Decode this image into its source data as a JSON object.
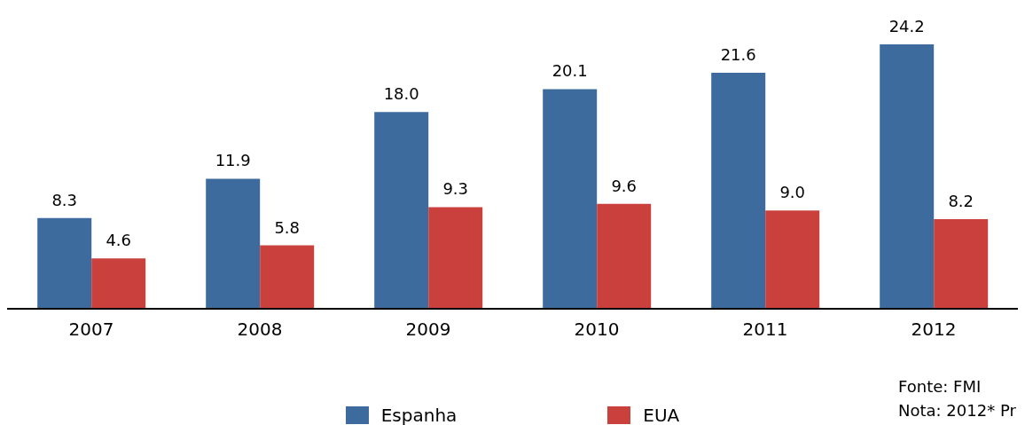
{
  "chart_data": {
    "type": "bar",
    "categories": [
      "2007",
      "2008",
      "2009",
      "2010",
      "2011",
      "2012"
    ],
    "series": [
      {
        "name": "Espanha",
        "color": "#3d6b9e",
        "values": [
          8.3,
          11.9,
          18.0,
          20.1,
          21.6,
          24.2
        ],
        "value_labels": [
          "8.3",
          "11.9",
          "18.0",
          "20.1",
          "21.6",
          "24.2"
        ]
      },
      {
        "name": "EUA",
        "color": "#c9403d",
        "values": [
          4.6,
          5.8,
          9.3,
          9.6,
          9.0,
          8.2
        ],
        "value_labels": [
          "4.6",
          "5.8",
          "9.3",
          "9.6",
          "9.0",
          "8.2"
        ]
      }
    ],
    "legend": "bottom",
    "grid": false,
    "annotations": [
      "Fonte: FMI",
      "Nota: 2012* Pr"
    ]
  }
}
